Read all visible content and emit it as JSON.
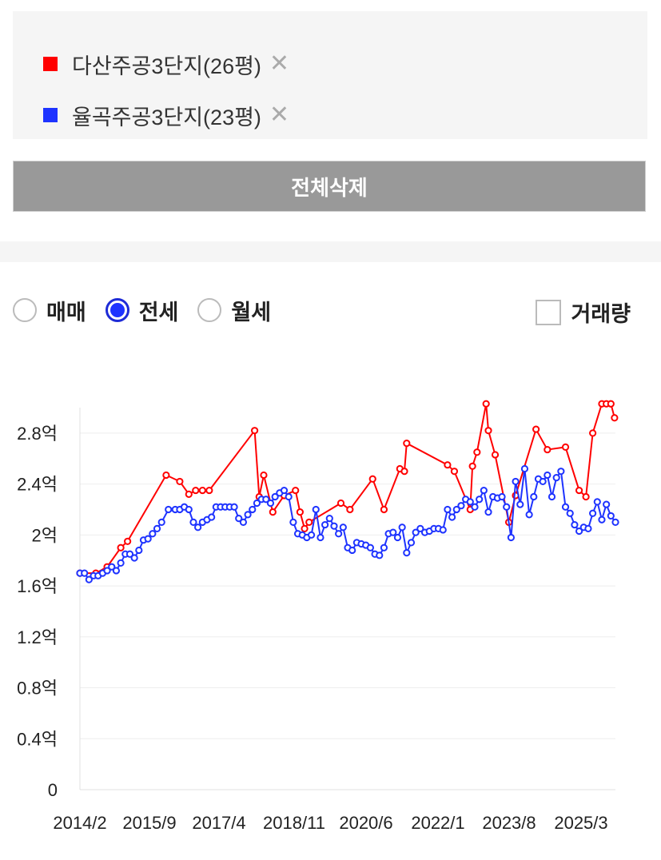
{
  "compare": {
    "items": [
      {
        "name": "다산주공3단지(26평)",
        "color": "#ff0000",
        "remove_icon": "close-icon"
      },
      {
        "name": "율곡주공3단지(23평)",
        "color": "#1e33ff",
        "remove_icon": "close-icon"
      }
    ]
  },
  "actions": {
    "delete_all_label": "전체삭제"
  },
  "trade_type": {
    "options": [
      "매매",
      "전세",
      "월세"
    ],
    "selected": "전세"
  },
  "volume_toggle": {
    "label": "거래량",
    "checked": false
  },
  "chart_data": {
    "type": "line",
    "xlabel": "",
    "ylabel": "",
    "y_ticks": [
      "0",
      "0.4억",
      "0.8억",
      "1.2억",
      "1.6억",
      "2억",
      "2.4억",
      "2.8억"
    ],
    "x_ticks": [
      "2014/2",
      "2015/9",
      "2017/4",
      "2018/11",
      "2020/6",
      "2022/1",
      "2023/8",
      "2025/3"
    ],
    "ylim": [
      0,
      3.0
    ],
    "xlim": [
      2014.0,
      2025.8
    ],
    "grid": true,
    "series": [
      {
        "name": "다산주공3단지(26평)",
        "color": "#ff0000",
        "points": [
          [
            2014.0,
            1.7
          ],
          [
            2014.35,
            1.7
          ],
          [
            2014.6,
            1.75
          ],
          [
            2014.9,
            1.9
          ],
          [
            2015.05,
            1.95
          ],
          [
            2015.9,
            2.47
          ],
          [
            2016.2,
            2.42
          ],
          [
            2016.4,
            2.32
          ],
          [
            2016.55,
            2.35
          ],
          [
            2016.7,
            2.35
          ],
          [
            2016.85,
            2.35
          ],
          [
            2017.85,
            2.82
          ],
          [
            2017.95,
            2.3
          ],
          [
            2018.05,
            2.47
          ],
          [
            2018.25,
            2.18
          ],
          [
            2018.5,
            2.31
          ],
          [
            2018.75,
            2.35
          ],
          [
            2018.85,
            2.18
          ],
          [
            2018.95,
            2.05
          ],
          [
            2019.05,
            2.1
          ],
          [
            2019.75,
            2.25
          ],
          [
            2019.95,
            2.2
          ],
          [
            2020.45,
            2.44
          ],
          [
            2020.7,
            2.2
          ],
          [
            2021.05,
            2.52
          ],
          [
            2021.15,
            2.5
          ],
          [
            2021.2,
            2.72
          ],
          [
            2022.1,
            2.55
          ],
          [
            2022.25,
            2.5
          ],
          [
            2022.6,
            2.2
          ],
          [
            2022.65,
            2.54
          ],
          [
            2022.75,
            2.65
          ],
          [
            2022.95,
            3.03
          ],
          [
            2023.0,
            2.82
          ],
          [
            2023.15,
            2.63
          ],
          [
            2023.45,
            2.1
          ],
          [
            2023.6,
            2.31
          ],
          [
            2024.05,
            2.83
          ],
          [
            2024.3,
            2.67
          ],
          [
            2024.7,
            2.69
          ],
          [
            2025.0,
            2.35
          ],
          [
            2025.15,
            2.3
          ],
          [
            2025.3,
            2.8
          ],
          [
            2025.5,
            3.03
          ],
          [
            2025.6,
            3.03
          ],
          [
            2025.7,
            3.03
          ],
          [
            2025.78,
            2.92
          ]
        ]
      },
      {
        "name": "율곡주공3단지(23평)",
        "color": "#1e33ff",
        "points": [
          [
            2014.0,
            1.7
          ],
          [
            2014.1,
            1.7
          ],
          [
            2014.2,
            1.65
          ],
          [
            2014.3,
            1.68
          ],
          [
            2014.4,
            1.68
          ],
          [
            2014.5,
            1.7
          ],
          [
            2014.6,
            1.72
          ],
          [
            2014.7,
            1.75
          ],
          [
            2014.8,
            1.72
          ],
          [
            2014.9,
            1.78
          ],
          [
            2015.0,
            1.85
          ],
          [
            2015.1,
            1.85
          ],
          [
            2015.2,
            1.82
          ],
          [
            2015.3,
            1.88
          ],
          [
            2015.4,
            1.96
          ],
          [
            2015.5,
            1.97
          ],
          [
            2015.6,
            2.01
          ],
          [
            2015.7,
            2.05
          ],
          [
            2015.8,
            2.1
          ],
          [
            2015.95,
            2.2
          ],
          [
            2016.1,
            2.2
          ],
          [
            2016.2,
            2.2
          ],
          [
            2016.3,
            2.22
          ],
          [
            2016.4,
            2.2
          ],
          [
            2016.5,
            2.1
          ],
          [
            2016.6,
            2.06
          ],
          [
            2016.7,
            2.1
          ],
          [
            2016.8,
            2.12
          ],
          [
            2016.9,
            2.14
          ],
          [
            2017.0,
            2.22
          ],
          [
            2017.1,
            2.22
          ],
          [
            2017.2,
            2.22
          ],
          [
            2017.3,
            2.22
          ],
          [
            2017.4,
            2.22
          ],
          [
            2017.5,
            2.13
          ],
          [
            2017.6,
            2.1
          ],
          [
            2017.7,
            2.16
          ],
          [
            2017.8,
            2.2
          ],
          [
            2017.9,
            2.25
          ],
          [
            2018.0,
            2.28
          ],
          [
            2018.1,
            2.28
          ],
          [
            2018.2,
            2.25
          ],
          [
            2018.3,
            2.3
          ],
          [
            2018.4,
            2.33
          ],
          [
            2018.5,
            2.35
          ],
          [
            2018.6,
            2.3
          ],
          [
            2018.7,
            2.1
          ],
          [
            2018.8,
            2.01
          ],
          [
            2018.9,
            2.0
          ],
          [
            2019.0,
            1.98
          ],
          [
            2019.1,
            2.0
          ],
          [
            2019.2,
            2.2
          ],
          [
            2019.3,
            1.98
          ],
          [
            2019.4,
            2.08
          ],
          [
            2019.5,
            2.13
          ],
          [
            2019.6,
            2.07
          ],
          [
            2019.7,
            2.01
          ],
          [
            2019.8,
            2.06
          ],
          [
            2019.9,
            1.9
          ],
          [
            2020.0,
            1.88
          ],
          [
            2020.1,
            1.94
          ],
          [
            2020.2,
            1.93
          ],
          [
            2020.3,
            1.92
          ],
          [
            2020.4,
            1.9
          ],
          [
            2020.5,
            1.85
          ],
          [
            2020.6,
            1.84
          ],
          [
            2020.7,
            1.9
          ],
          [
            2020.8,
            2.01
          ],
          [
            2020.9,
            2.02
          ],
          [
            2021.0,
            1.98
          ],
          [
            2021.1,
            2.06
          ],
          [
            2021.2,
            1.86
          ],
          [
            2021.3,
            1.94
          ],
          [
            2021.4,
            2.02
          ],
          [
            2021.5,
            2.05
          ],
          [
            2021.6,
            2.02
          ],
          [
            2021.7,
            2.03
          ],
          [
            2021.8,
            2.05
          ],
          [
            2021.9,
            2.05
          ],
          [
            2022.0,
            2.04
          ],
          [
            2022.1,
            2.2
          ],
          [
            2022.2,
            2.14
          ],
          [
            2022.3,
            2.2
          ],
          [
            2022.4,
            2.23
          ],
          [
            2022.5,
            2.28
          ],
          [
            2022.6,
            2.26
          ],
          [
            2022.7,
            2.22
          ],
          [
            2022.8,
            2.28
          ],
          [
            2022.9,
            2.35
          ],
          [
            2023.0,
            2.18
          ],
          [
            2023.1,
            2.3
          ],
          [
            2023.2,
            2.29
          ],
          [
            2023.3,
            2.3
          ],
          [
            2023.4,
            2.22
          ],
          [
            2023.5,
            1.98
          ],
          [
            2023.6,
            2.42
          ],
          [
            2023.7,
            2.24
          ],
          [
            2023.8,
            2.52
          ],
          [
            2023.9,
            2.16
          ],
          [
            2024.0,
            2.3
          ],
          [
            2024.1,
            2.44
          ],
          [
            2024.2,
            2.42
          ],
          [
            2024.3,
            2.47
          ],
          [
            2024.4,
            2.3
          ],
          [
            2024.5,
            2.45
          ],
          [
            2024.6,
            2.5
          ],
          [
            2024.7,
            2.22
          ],
          [
            2024.8,
            2.17
          ],
          [
            2024.9,
            2.08
          ],
          [
            2025.0,
            2.03
          ],
          [
            2025.1,
            2.06
          ],
          [
            2025.2,
            2.05
          ],
          [
            2025.3,
            2.17
          ],
          [
            2025.4,
            2.26
          ],
          [
            2025.5,
            2.12
          ],
          [
            2025.6,
            2.24
          ],
          [
            2025.7,
            2.15
          ],
          [
            2025.8,
            2.1
          ]
        ]
      }
    ]
  }
}
